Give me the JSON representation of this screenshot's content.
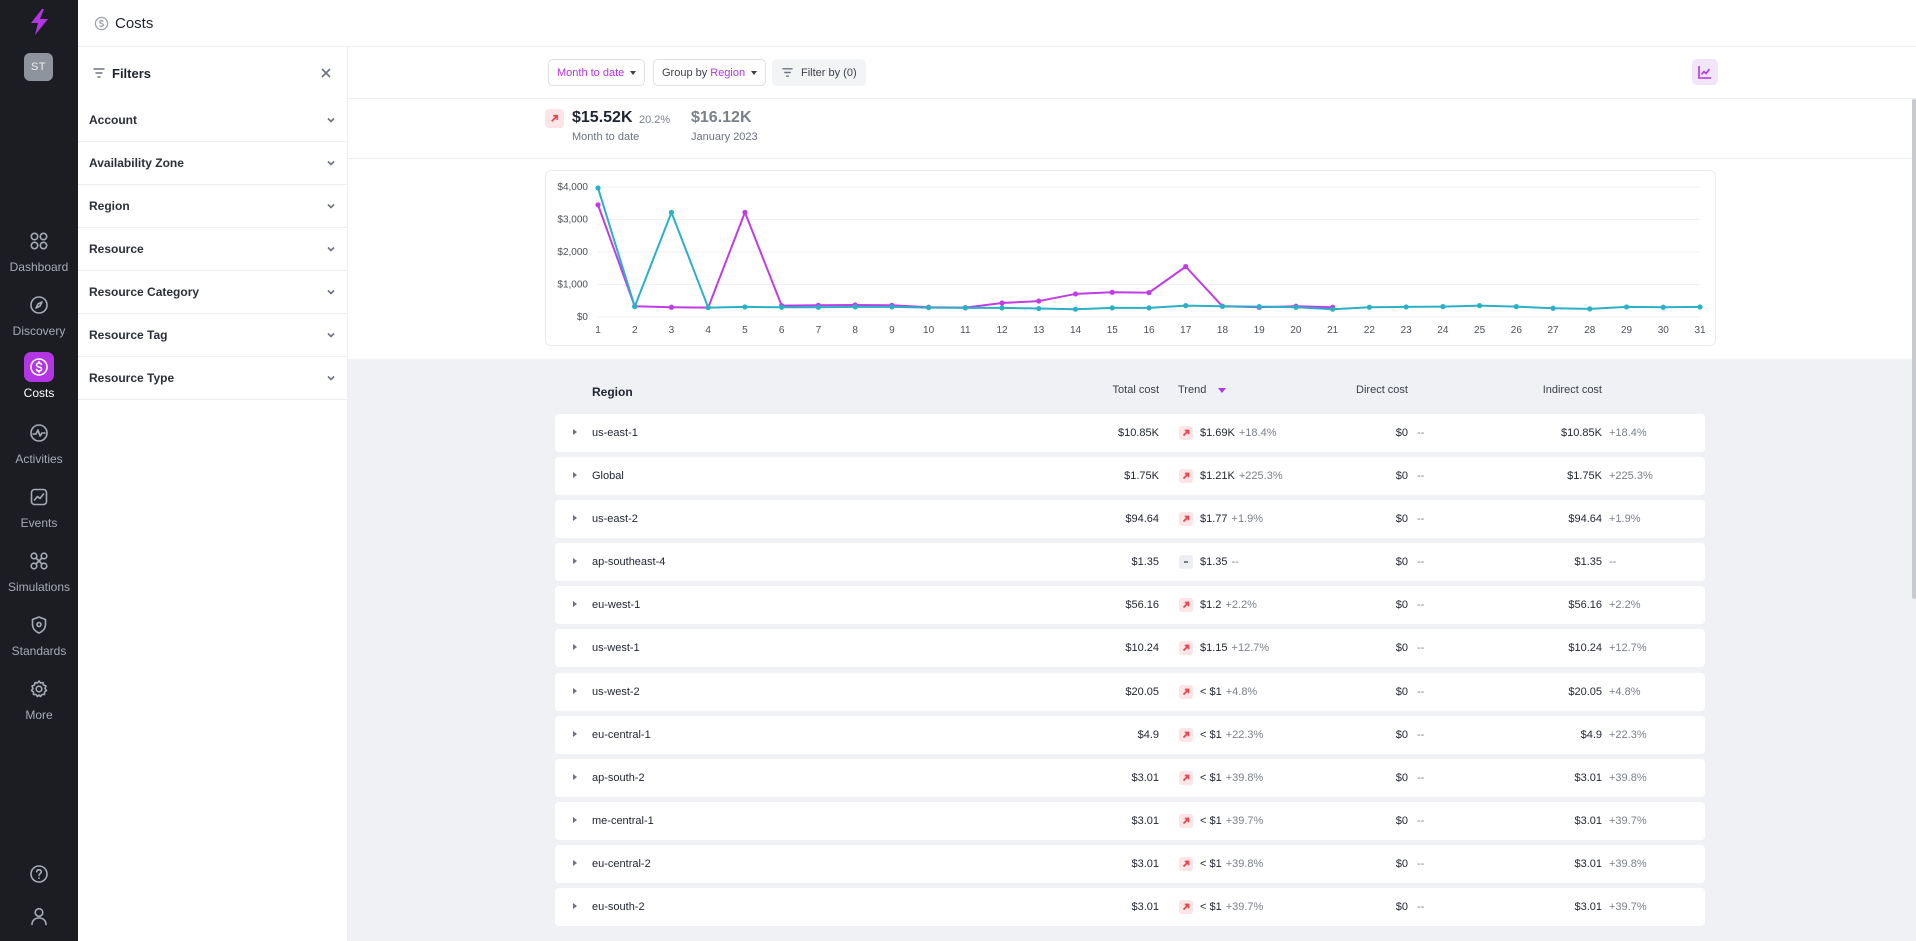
{
  "app": {
    "user_initials": "ST",
    "page_title": "Costs"
  },
  "nav": {
    "items": [
      {
        "label": "Dashboard",
        "icon": "dashboard-icon"
      },
      {
        "label": "Discovery",
        "icon": "compass-icon"
      },
      {
        "label": "Costs",
        "icon": "dollar-icon",
        "active": true
      },
      {
        "label": "Activities",
        "icon": "activity-icon"
      },
      {
        "label": "Events",
        "icon": "events-icon"
      },
      {
        "label": "Simulations",
        "icon": "simulations-icon"
      },
      {
        "label": "Standards",
        "icon": "shield-icon"
      },
      {
        "label": "More",
        "icon": "gear-icon"
      }
    ]
  },
  "filters": {
    "title": "Filters",
    "items": [
      "Account",
      "Availability Zone",
      "Region",
      "Resource",
      "Resource Category",
      "Resource Tag",
      "Resource Type"
    ]
  },
  "toolbar": {
    "period": "Month to date",
    "group_prefix": "Group by",
    "group_value": "Region",
    "filter_by": "Filter by (0)"
  },
  "summary": {
    "current_value": "$15.52K",
    "current_pct": "20.2%",
    "current_label": "Month to date",
    "previous_value": "$16.12K",
    "previous_label": "January 2023"
  },
  "chart_data": {
    "type": "line",
    "x": [
      1,
      2,
      3,
      4,
      5,
      6,
      7,
      8,
      9,
      10,
      11,
      12,
      13,
      14,
      15,
      16,
      17,
      18,
      19,
      20,
      21,
      22,
      23,
      24,
      25,
      26,
      27,
      28,
      29,
      30,
      31
    ],
    "ylim": [
      0,
      4000
    ],
    "yticks": [
      "$0",
      "$1,000",
      "$2,000",
      "$3,000",
      "$4,000"
    ],
    "yticks_values": [
      0,
      1000,
      2000,
      3000,
      4000
    ],
    "series": [
      {
        "color": "#c03de6",
        "values": [
          3450,
          330,
          300,
          290,
          3220,
          350,
          360,
          370,
          360,
          300,
          290,
          430,
          490,
          710,
          760,
          750,
          1550,
          330,
          300,
          330,
          300,
          null,
          null,
          null,
          null,
          null,
          null,
          null,
          null,
          null,
          null
        ]
      },
      {
        "color": "#2bb0c6",
        "values": [
          3970,
          320,
          3220,
          290,
          310,
          300,
          300,
          310,
          310,
          290,
          280,
          280,
          260,
          240,
          280,
          280,
          350,
          330,
          320,
          300,
          240,
          300,
          310,
          320,
          350,
          320,
          270,
          250,
          310,
          300,
          310
        ]
      }
    ]
  },
  "table": {
    "headers": {
      "region": "Region",
      "total": "Total cost",
      "trend": "Trend",
      "direct": "Direct cost",
      "indirect": "Indirect cost"
    },
    "rows": [
      {
        "name": "us-east-1",
        "total": "$10.85K",
        "trend": "$1.69K",
        "trend_pct": "+18.4%",
        "direct": "$0",
        "direct_pct": "--",
        "indirect": "$10.85K",
        "indirect_pct": "+18.4%",
        "flat": false
      },
      {
        "name": "Global",
        "total": "$1.75K",
        "trend": "$1.21K",
        "trend_pct": "+225.3%",
        "direct": "$0",
        "direct_pct": "--",
        "indirect": "$1.75K",
        "indirect_pct": "+225.3%",
        "flat": false
      },
      {
        "name": "us-east-2",
        "total": "$94.64",
        "trend": "$1.77",
        "trend_pct": "+1.9%",
        "direct": "$0",
        "direct_pct": "--",
        "indirect": "$94.64",
        "indirect_pct": "+1.9%",
        "flat": false
      },
      {
        "name": "ap-southeast-4",
        "total": "$1.35",
        "trend": "$1.35",
        "trend_pct": "--",
        "direct": "$0",
        "direct_pct": "--",
        "indirect": "$1.35",
        "indirect_pct": "--",
        "flat": true
      },
      {
        "name": "eu-west-1",
        "total": "$56.16",
        "trend": "$1.2",
        "trend_pct": "+2.2%",
        "direct": "$0",
        "direct_pct": "--",
        "indirect": "$56.16",
        "indirect_pct": "+2.2%",
        "flat": false
      },
      {
        "name": "us-west-1",
        "total": "$10.24",
        "trend": "$1.15",
        "trend_pct": "+12.7%",
        "direct": "$0",
        "direct_pct": "--",
        "indirect": "$10.24",
        "indirect_pct": "+12.7%",
        "flat": false
      },
      {
        "name": "us-west-2",
        "total": "$20.05",
        "trend": "< $1",
        "trend_pct": "+4.8%",
        "direct": "$0",
        "direct_pct": "--",
        "indirect": "$20.05",
        "indirect_pct": "+4.8%",
        "flat": false
      },
      {
        "name": "eu-central-1",
        "total": "$4.9",
        "trend": "< $1",
        "trend_pct": "+22.3%",
        "direct": "$0",
        "direct_pct": "--",
        "indirect": "$4.9",
        "indirect_pct": "+22.3%",
        "flat": false
      },
      {
        "name": "ap-south-2",
        "total": "$3.01",
        "trend": "< $1",
        "trend_pct": "+39.8%",
        "direct": "$0",
        "direct_pct": "--",
        "indirect": "$3.01",
        "indirect_pct": "+39.8%",
        "flat": false
      },
      {
        "name": "me-central-1",
        "total": "$3.01",
        "trend": "< $1",
        "trend_pct": "+39.7%",
        "direct": "$0",
        "direct_pct": "--",
        "indirect": "$3.01",
        "indirect_pct": "+39.7%",
        "flat": false
      },
      {
        "name": "eu-central-2",
        "total": "$3.01",
        "trend": "< $1",
        "trend_pct": "+39.8%",
        "direct": "$0",
        "direct_pct": "--",
        "indirect": "$3.01",
        "indirect_pct": "+39.8%",
        "flat": false
      },
      {
        "name": "eu-south-2",
        "total": "$3.01",
        "trend": "< $1",
        "trend_pct": "+39.7%",
        "direct": "$0",
        "direct_pct": "--",
        "indirect": "$3.01",
        "indirect_pct": "+39.7%",
        "flat": false
      }
    ]
  }
}
